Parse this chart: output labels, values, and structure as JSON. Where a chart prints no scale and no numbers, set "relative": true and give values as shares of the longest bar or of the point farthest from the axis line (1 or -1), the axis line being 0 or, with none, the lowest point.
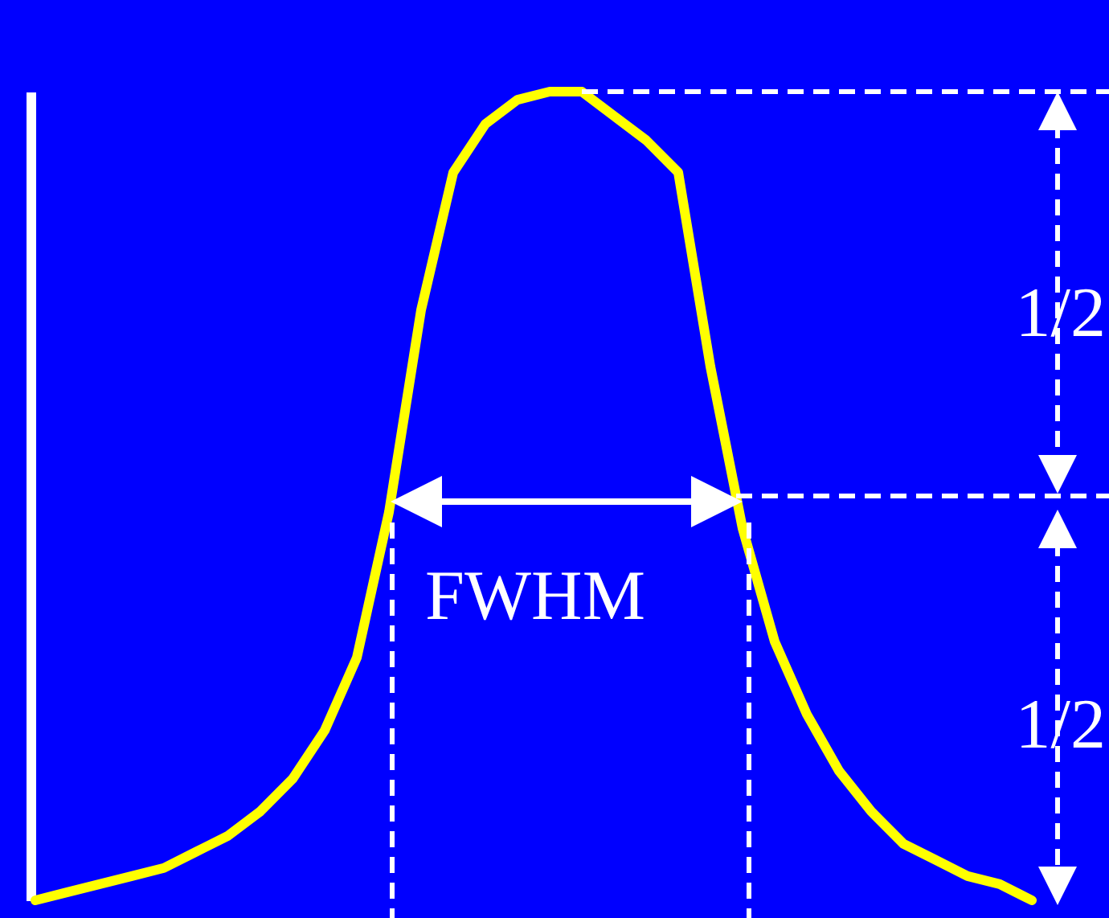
{
  "chart_data": {
    "type": "line",
    "relative": true,
    "line_style": "solid",
    "marker": "none",
    "categories": [
      null,
      null,
      null,
      null,
      null,
      null,
      null,
      null,
      null,
      null,
      null,
      null,
      null,
      null,
      null,
      null,
      null,
      null,
      null,
      null,
      null,
      null,
      null,
      null,
      null,
      null,
      null,
      null,
      null,
      null,
      null,
      null
    ],
    "series": [
      {
        "color": "#ffff00",
        "values": [
          0,
          0.01,
          0.02,
          0.03,
          0.04,
          0.06,
          0.08,
          0.11,
          0.15,
          0.21,
          0.3,
          0.48,
          0.73,
          0.9,
          0.96,
          0.99,
          1,
          1,
          0.97,
          0.94,
          0.9,
          0.66,
          0.46,
          0.32,
          0.23,
          0.16,
          0.11,
          0.07,
          0.05,
          0.03,
          0.02,
          0
        ]
      }
    ],
    "ref_lines": [
      {
        "axis": "y",
        "value": 1,
        "color": "#ffffff",
        "line_style": "dashed"
      },
      {
        "axis": "y",
        "value": 0.5,
        "color": "#ffffff",
        "line_style": "dashed"
      }
    ],
    "annotations": [
      "FWHM",
      "1/2",
      "1/2"
    ]
  }
}
